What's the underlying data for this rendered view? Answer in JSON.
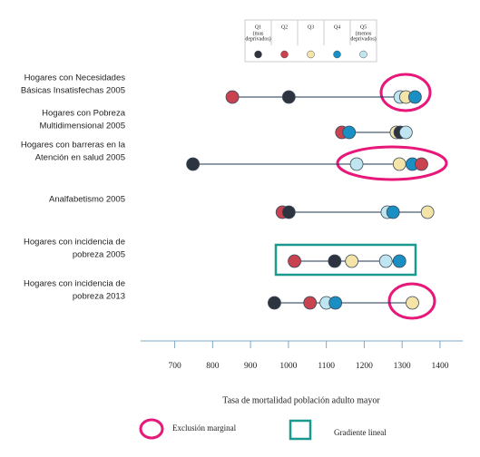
{
  "chart_data": {
    "type": "dot",
    "categories": [
      [
        "Hogares con Necesidades",
        "Básicas Insatisfechas  2005"
      ],
      [
        "Hogares con Pobreza",
        "Multidimensional  2005"
      ],
      [
        "Hogares con barreras en la",
        "Atención  en salud 2005"
      ],
      [
        "Analfabetismo  2005"
      ],
      [
        "Hogares con incidencia  de",
        "pobreza 2005"
      ],
      [
        "Hogares con incidencia  de",
        "pobreza 2013"
      ]
    ],
    "series": [
      {
        "name": "Q1",
        "sublabel": [
          "(mas",
          "deprivados)"
        ],
        "color": "#2d3440",
        "values": [
          1001,
          1295,
          748,
          1001,
          1122,
          963
        ]
      },
      {
        "name": "Q2",
        "color": "#c8424f",
        "values": [
          852,
          1141,
          1351,
          984,
          1016,
          1057
        ]
      },
      {
        "name": "Q3",
        "color": "#f5e4a8",
        "values": [
          1310,
          1285,
          1293,
          1367,
          1167,
          1327
        ]
      },
      {
        "name": "Q4",
        "color": "#1a8fc4",
        "values": [
          1334,
          1160,
          1327,
          1276,
          1293,
          1124
        ]
      },
      {
        "name": "Q5",
        "sublabel": [
          "(menos",
          "deprivados)"
        ],
        "color": "#bfe6f0",
        "values": [
          1295,
          1310,
          1180,
          1261,
          1257,
          1100
        ]
      }
    ],
    "xlim": [
      610,
      1460
    ],
    "xticks": [
      700,
      800,
      900,
      1000,
      1100,
      1200,
      1300,
      1400
    ],
    "xlabel": "Tasa de mortalidad población adulto mayor",
    "annotations": {
      "ellipse": "Exclusión marginal",
      "rect": "Gradiente lineal"
    }
  }
}
